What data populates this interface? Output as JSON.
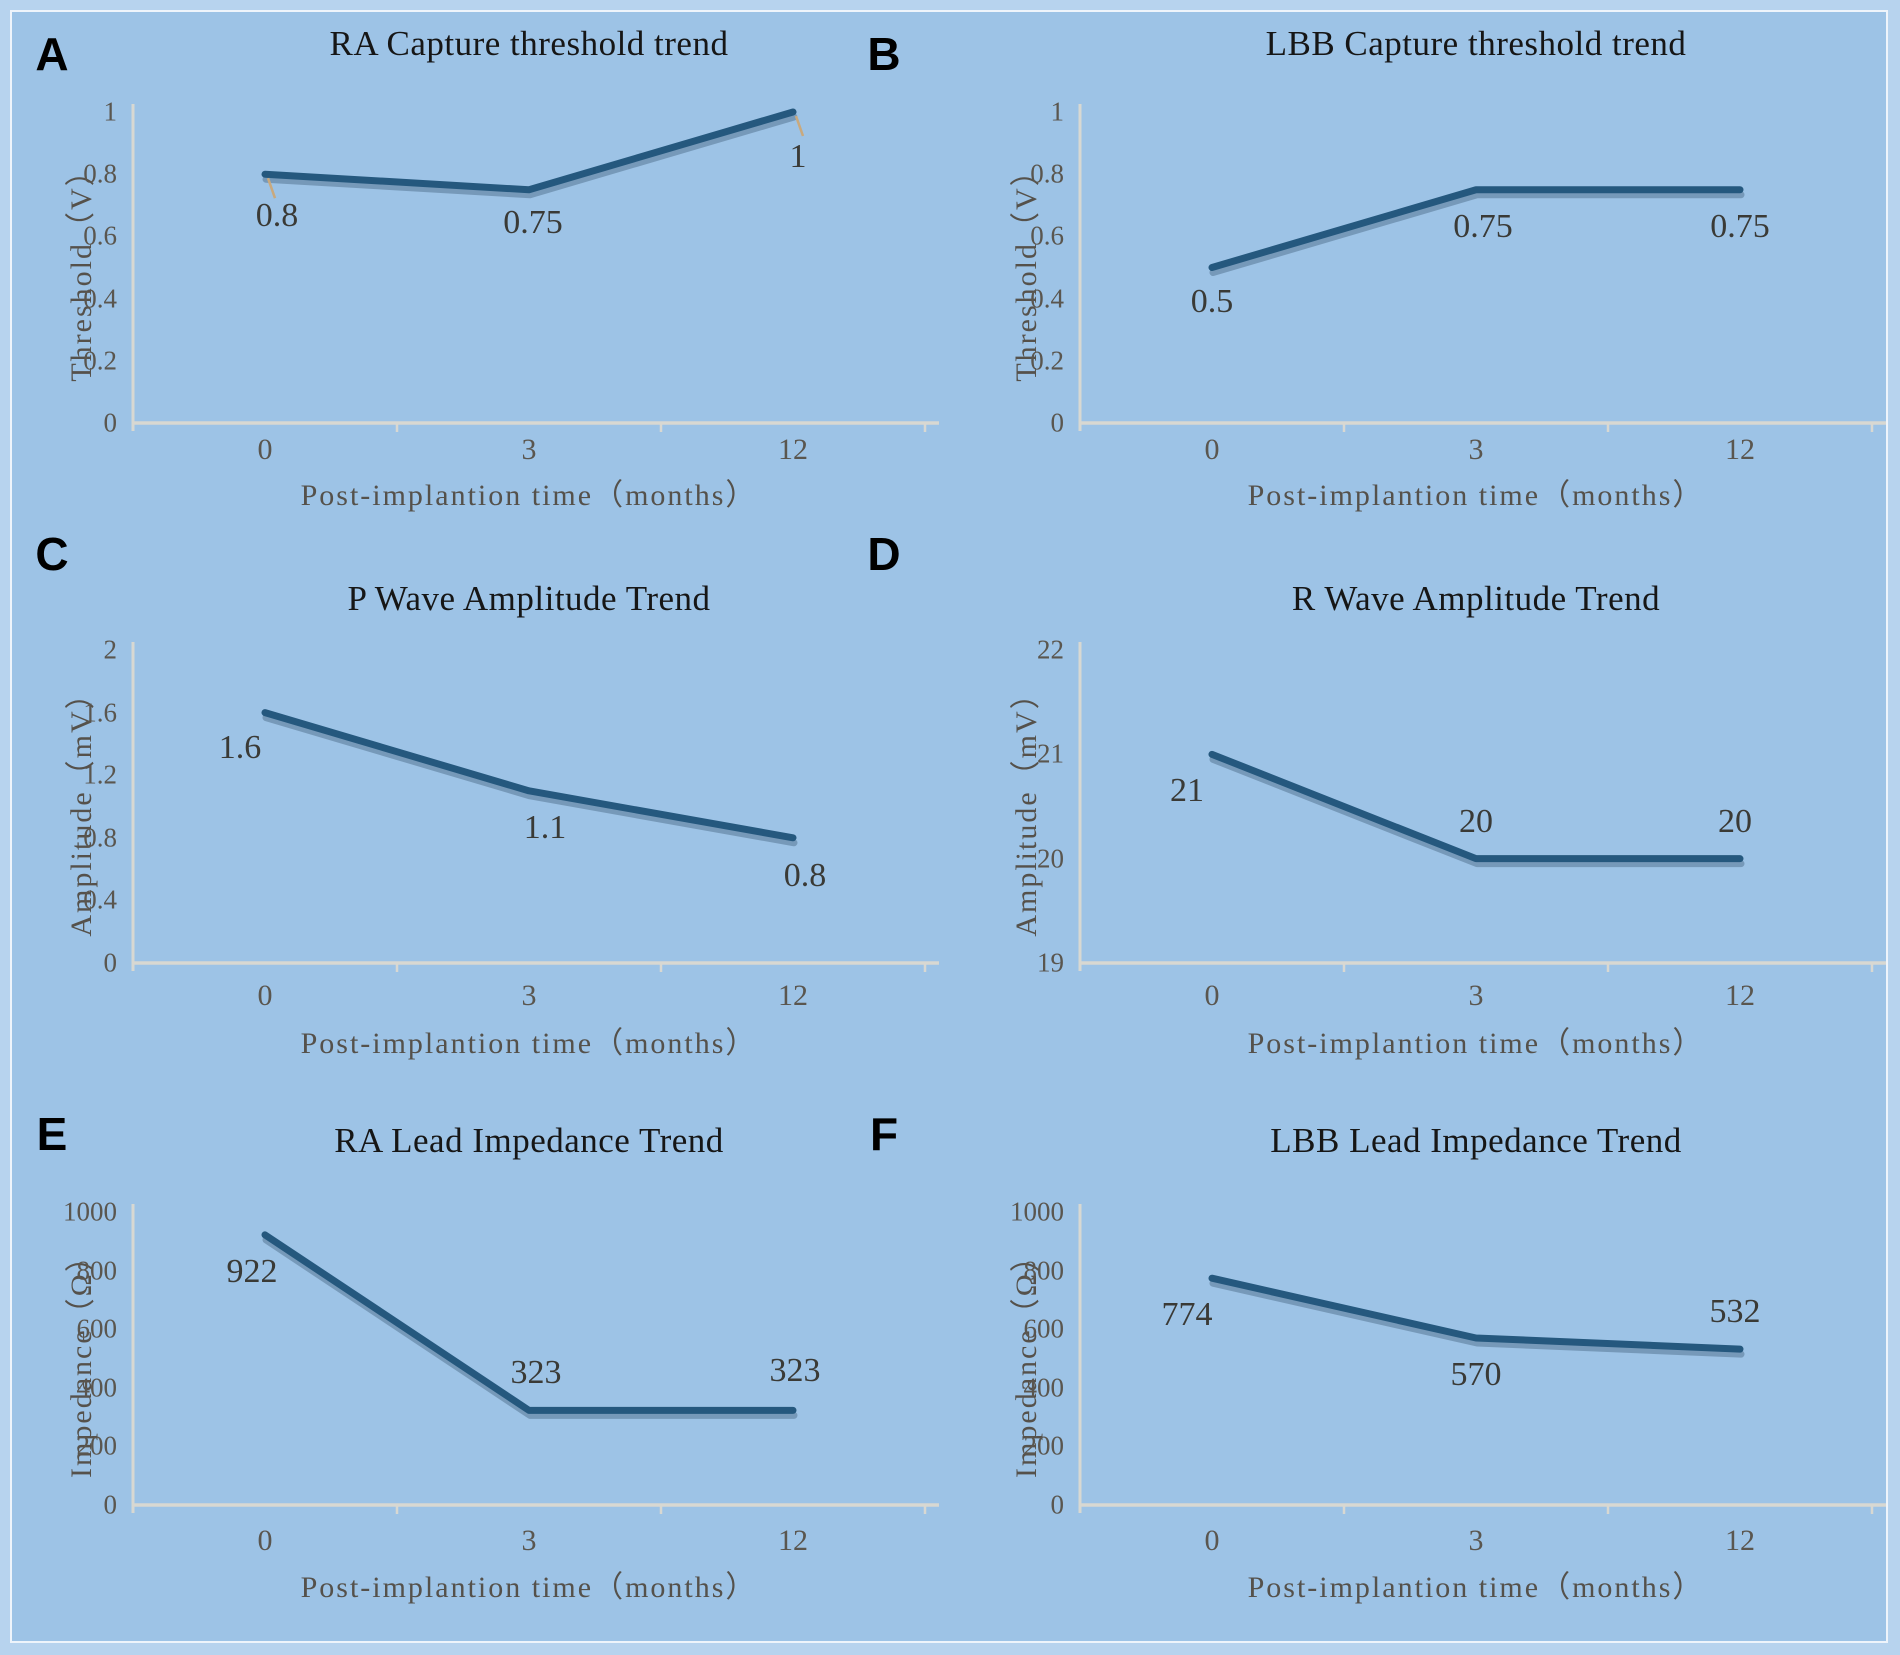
{
  "figure": {
    "background_color": "#9dc3e6",
    "frame_color": "#b7d3ee",
    "frame_line_color": "#eef4fb",
    "trend_line_color": "#25587e",
    "trend_shadow_color": "rgba(45,75,100,0.35)",
    "axis_line_color": "#d8d8d2",
    "tick_text_color": "#5a564f",
    "data_label_color": "#3a3a36",
    "title_color": "#161616",
    "leader_line_color": "#c9a97e"
  },
  "x_categories": [
    "0",
    "3",
    "12"
  ],
  "chart_data": [
    {
      "type": "line",
      "letter": "A",
      "title": "RA Capture threshold trend",
      "ylabel": "Threshold（V）",
      "xlabel": "Post-implantion time（months）",
      "x": [
        "0",
        "3",
        "12"
      ],
      "values": [
        0.8,
        0.75,
        1
      ],
      "labels": [
        "0.8",
        "0.75",
        "1"
      ],
      "yticks": [
        "0",
        "0.2",
        "0.4",
        "0.6",
        "0.8",
        "1"
      ],
      "ylim": [
        0,
        1
      ],
      "label_side": [
        "below",
        "below",
        "below"
      ],
      "leader_points": [
        0,
        2
      ],
      "grid": false,
      "legend": "none"
    },
    {
      "type": "line",
      "letter": "B",
      "title": "LBB Capture threshold trend",
      "ylabel": "Threshold（V）",
      "xlabel": "Post-implantion time（months）",
      "x": [
        "0",
        "3",
        "12"
      ],
      "values": [
        0.5,
        0.75,
        0.75
      ],
      "labels": [
        "0.5",
        "0.75",
        "0.75"
      ],
      "yticks": [
        "0",
        "0.2",
        "0.4",
        "0.6",
        "0.8",
        "1"
      ],
      "ylim": [
        0,
        1
      ],
      "label_side": [
        "below",
        "below",
        "below"
      ],
      "leader_points": [],
      "grid": false,
      "legend": "none"
    },
    {
      "type": "line",
      "letter": "C",
      "title": "P Wave Amplitude Trend",
      "ylabel": "Amplitude（mV）",
      "xlabel": "Post-implantion time（months）",
      "x": [
        "0",
        "3",
        "12"
      ],
      "values": [
        1.6,
        1.1,
        0.8
      ],
      "labels": [
        "1.6",
        "1.1",
        "0.8"
      ],
      "yticks": [
        "0",
        "0.4",
        "0.8",
        "1.2",
        "1.6",
        "2"
      ],
      "ylim": [
        0,
        2
      ],
      "label_side": [
        "below",
        "below",
        "below"
      ],
      "leader_points": [],
      "grid": false,
      "legend": "none"
    },
    {
      "type": "line",
      "letter": "D",
      "title": "R Wave Amplitude Trend",
      "ylabel": "Amplitude（mV）",
      "xlabel": "Post-implantion time（months）",
      "x": [
        "0",
        "3",
        "12"
      ],
      "values": [
        21,
        20,
        20
      ],
      "labels": [
        "21",
        "20",
        "20"
      ],
      "yticks": [
        "19",
        "20",
        "21",
        "22"
      ],
      "ylim": [
        19,
        22
      ],
      "label_side": [
        "below",
        "above",
        "above"
      ],
      "leader_points": [],
      "grid": false,
      "legend": "none"
    },
    {
      "type": "line",
      "letter": "E",
      "title": "RA Lead Impedance Trend",
      "ylabel": "Impedance（Ω）",
      "xlabel": "Post-implantion time（months）",
      "x": [
        "0",
        "3",
        "12"
      ],
      "values": [
        922,
        323,
        323
      ],
      "labels": [
        "922",
        "323",
        "323"
      ],
      "yticks": [
        "0",
        "200",
        "400",
        "600",
        "800",
        "1000"
      ],
      "ylim": [
        0,
        1000
      ],
      "label_side": [
        "below",
        "above",
        "above"
      ],
      "leader_points": [],
      "grid": false,
      "legend": "none"
    },
    {
      "type": "line",
      "letter": "F",
      "title": "LBB Lead Impedance Trend",
      "ylabel": "Impedance（Ω）",
      "xlabel": "Post-implantion time（months）",
      "x": [
        "0",
        "3",
        "12"
      ],
      "values": [
        774,
        570,
        532
      ],
      "labels": [
        "774",
        "570",
        "532"
      ],
      "yticks": [
        "0",
        "200",
        "400",
        "600",
        "800",
        "1000"
      ],
      "ylim": [
        0,
        1000
      ],
      "label_side": [
        "below",
        "below",
        "above"
      ],
      "leader_points": [],
      "grid": false,
      "legend": "none"
    }
  ]
}
